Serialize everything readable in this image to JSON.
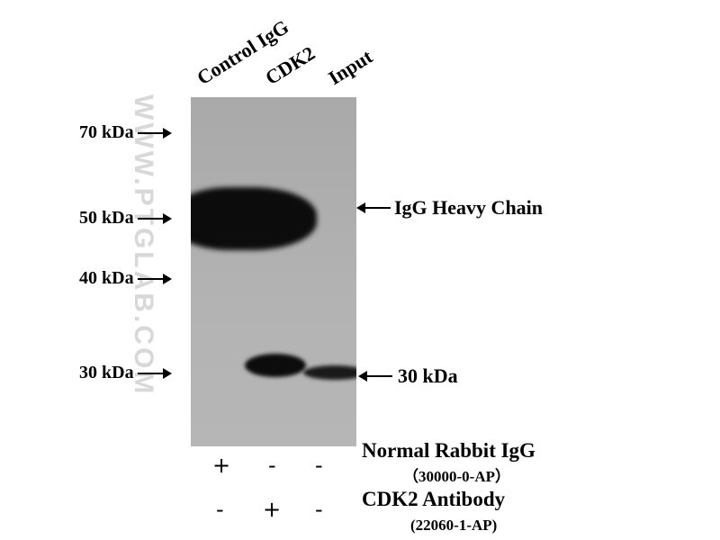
{
  "lanes": [
    "Control IgG",
    "CDK2",
    "Input"
  ],
  "markers": [
    "70 kDa",
    "50 kDa",
    "40 kDa",
    "30 kDa"
  ],
  "annotations": {
    "heavy_chain": "IgG Heavy Chain",
    "target": "30 kDa"
  },
  "watermark": "WWW.PTGLAB.COM",
  "conditions": [
    {
      "label": "Normal Rabbit IgG",
      "catalog": "（30000-0-AP）",
      "signs": [
        "+",
        "-",
        "-"
      ]
    },
    {
      "label": "CDK2 Antibody",
      "catalog": "(22060-1-AP)",
      "signs": [
        "-",
        "+",
        "-"
      ]
    }
  ]
}
